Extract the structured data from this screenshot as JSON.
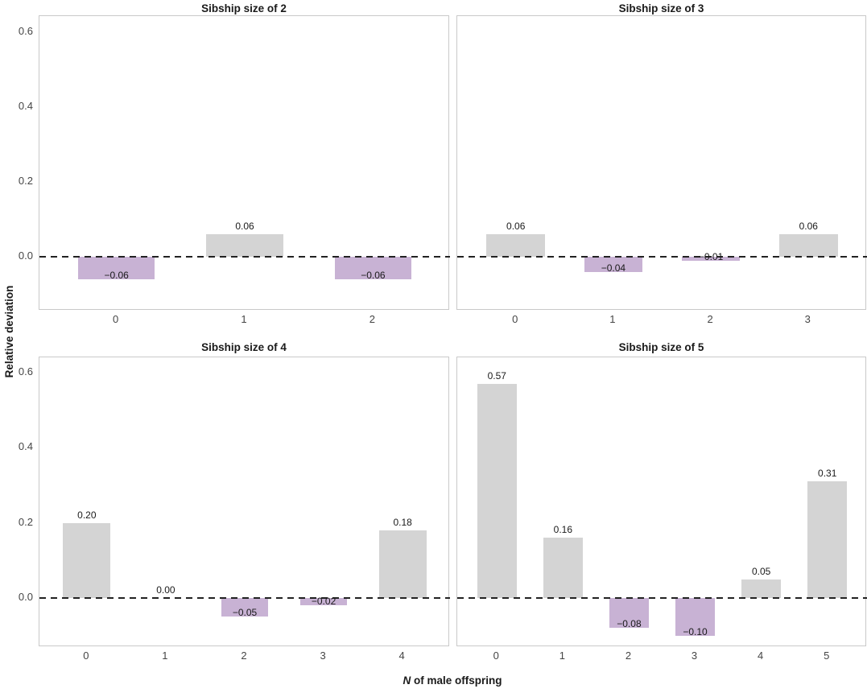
{
  "figure": {
    "ylabel": "Relative deviation",
    "xlabel_italic": "N",
    "xlabel_rest": " of male offspring",
    "colors": {
      "positive_bar": "#d4d4d4",
      "negative_bar": "#c8b2d4",
      "panel_border": "#c9c9c9",
      "zero_line": "#222222",
      "tick_label": "#454545",
      "value_label": "#1a1a1a"
    }
  },
  "chart_data": [
    {
      "type": "bar",
      "title": "Sibship size of 2",
      "categories": [
        "0",
        "1",
        "2"
      ],
      "values": [
        -0.06,
        0.06,
        -0.06
      ],
      "value_labels": [
        "−0.06",
        "0.06",
        "−0.06"
      ],
      "xlabel": "N of male offspring",
      "ylabel": "Relative deviation",
      "ylim": [
        -0.14,
        0.64
      ],
      "yticks": [
        0.0,
        0.2,
        0.4,
        0.6
      ],
      "ytick_labels": [
        "0.0",
        "0.2",
        "0.4",
        "0.6"
      ],
      "zero_line_dashed": true,
      "grid": false,
      "legend": false
    },
    {
      "type": "bar",
      "title": "Sibship size of 3",
      "categories": [
        "0",
        "1",
        "2",
        "3"
      ],
      "values": [
        0.06,
        -0.04,
        -0.01,
        0.06
      ],
      "value_labels": [
        "0.06",
        "−0.04",
        "−0.01",
        "0.06"
      ],
      "xlabel": "N of male offspring",
      "ylabel": "Relative deviation",
      "ylim": [
        -0.14,
        0.64
      ],
      "yticks": [
        0.0,
        0.2,
        0.4,
        0.6
      ],
      "ytick_labels": [
        "0.0",
        "0.2",
        "0.4",
        "0.6"
      ],
      "zero_line_dashed": true,
      "grid": false,
      "legend": false
    },
    {
      "type": "bar",
      "title": "Sibship size of 4",
      "categories": [
        "0",
        "1",
        "2",
        "3",
        "4"
      ],
      "values": [
        0.2,
        0.0,
        -0.05,
        -0.02,
        0.18
      ],
      "value_labels": [
        "0.20",
        "0.00",
        "−0.05",
        "−0.02",
        "0.18"
      ],
      "xlabel": "N of male offspring",
      "ylabel": "Relative deviation",
      "ylim": [
        -0.13,
        0.64
      ],
      "yticks": [
        0.0,
        0.2,
        0.4,
        0.6
      ],
      "ytick_labels": [
        "0.0",
        "0.2",
        "0.4",
        "0.6"
      ],
      "zero_line_dashed": true,
      "grid": false,
      "legend": false
    },
    {
      "type": "bar",
      "title": "Sibship size of 5",
      "categories": [
        "0",
        "1",
        "2",
        "3",
        "4",
        "5"
      ],
      "values": [
        0.57,
        0.16,
        -0.08,
        -0.1,
        0.05,
        0.31
      ],
      "value_labels": [
        "0.57",
        "0.16",
        "−0.08",
        "−0.10",
        "0.05",
        "0.31"
      ],
      "xlabel": "N of male offspring",
      "ylabel": "Relative deviation",
      "ylim": [
        -0.13,
        0.64
      ],
      "yticks": [
        0.0,
        0.2,
        0.4,
        0.6
      ],
      "ytick_labels": [
        "0.0",
        "0.2",
        "0.4",
        "0.6"
      ],
      "zero_line_dashed": true,
      "grid": false,
      "legend": false
    }
  ]
}
